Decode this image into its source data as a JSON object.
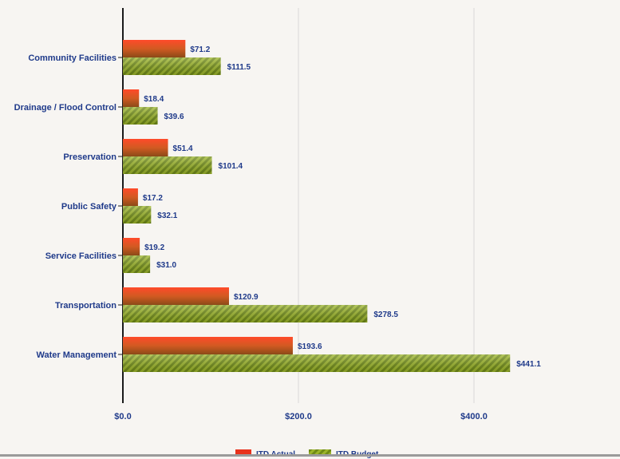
{
  "chart_data": {
    "type": "bar",
    "orientation": "horizontal",
    "categories": [
      "Community Facilities",
      "Drainage / Flood Control",
      "Preservation",
      "Public Safety",
      "Service Facilities",
      "Transportation",
      "Water Management"
    ],
    "series": [
      {
        "name": "ITD Actual",
        "values": [
          71.2,
          18.4,
          51.4,
          17.2,
          19.2,
          120.9,
          193.6
        ],
        "labels": [
          "$71.2",
          "$18.4",
          "$51.4",
          "$17.2",
          "$19.2",
          "$120.9",
          "$193.6"
        ],
        "color": "#c8501e"
      },
      {
        "name": "ITD Budget",
        "values": [
          111.5,
          39.6,
          101.4,
          32.1,
          31.0,
          278.5,
          441.1
        ],
        "labels": [
          "$111.5",
          "$39.6",
          "$101.4",
          "$32.1",
          "$31.0",
          "$278.5",
          "$441.1"
        ],
        "color": "#7f9a1c"
      }
    ],
    "xlim": [
      0,
      560
    ],
    "xticks": [
      0,
      200,
      400
    ],
    "xtick_labels": [
      "$0.0",
      "$200.0",
      "$400.0"
    ],
    "grid": true,
    "legend_position": "bottom"
  }
}
